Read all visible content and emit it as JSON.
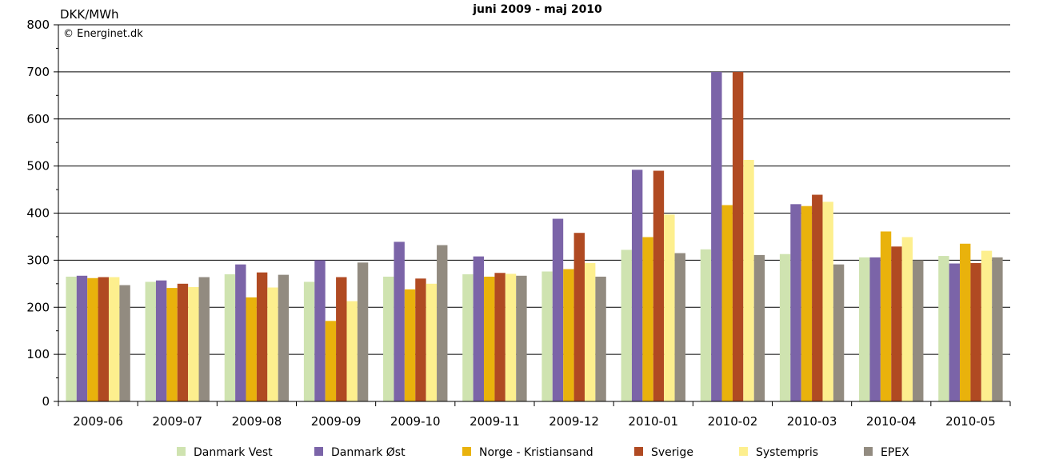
{
  "chart_data": {
    "type": "bar",
    "title": "juni 2009 - maj 2010",
    "ylabel": "DKK/MWh",
    "copyright": "© Energinet.dk",
    "ylim": [
      0,
      800
    ],
    "yticks": [
      0,
      100,
      200,
      300,
      400,
      500,
      600,
      700,
      800
    ],
    "grid": true,
    "legend_position": "bottom",
    "categories": [
      "2009-06",
      "2009-07",
      "2009-08",
      "2009-09",
      "2009-10",
      "2009-11",
      "2009-12",
      "2010-01",
      "2010-02",
      "2010-03",
      "2010-04",
      "2010-05"
    ],
    "series": [
      {
        "name": "Danmark Vest",
        "color": "#cfe3b0",
        "values": [
          265,
          254,
          270,
          254,
          265,
          270,
          276,
          322,
          323,
          313,
          306,
          309
        ]
      },
      {
        "name": "Danmark Øst",
        "color": "#7b64a8",
        "values": [
          267,
          257,
          291,
          300,
          339,
          308,
          388,
          492,
          700,
          419,
          306,
          293
        ]
      },
      {
        "name": "Norge - Kristiansand",
        "color": "#e9b20c",
        "values": [
          262,
          241,
          221,
          171,
          238,
          265,
          281,
          349,
          417,
          415,
          361,
          335
        ]
      },
      {
        "name": "Sverige",
        "color": "#b04a22",
        "values": [
          264,
          250,
          274,
          264,
          261,
          273,
          358,
          490,
          700,
          439,
          329,
          294
        ]
      },
      {
        "name": "Systempris",
        "color": "#fdef8e",
        "values": [
          264,
          243,
          242,
          213,
          250,
          271,
          294,
          397,
          513,
          424,
          349,
          320
        ]
      },
      {
        "name": "EPEX",
        "color": "#928b80",
        "values": [
          247,
          264,
          269,
          295,
          332,
          267,
          265,
          315,
          311,
          291,
          300,
          306
        ]
      }
    ]
  }
}
